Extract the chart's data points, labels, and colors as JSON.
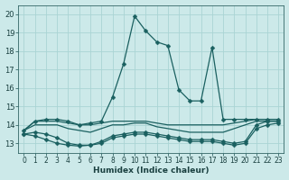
{
  "xlabel": "Humidex (Indice chaleur)",
  "ylabel": "",
  "xlim": [
    -0.5,
    23.5
  ],
  "ylim": [
    12.5,
    20.5
  ],
  "yticks": [
    13,
    14,
    15,
    16,
    17,
    18,
    19,
    20
  ],
  "xticks": [
    0,
    1,
    2,
    3,
    4,
    5,
    6,
    7,
    8,
    9,
    10,
    11,
    12,
    13,
    14,
    15,
    16,
    17,
    18,
    19,
    20,
    21,
    22,
    23
  ],
  "background_color": "#cce9e9",
  "grid_color": "#aad4d4",
  "line_color": "#1a6060",
  "lines": [
    {
      "x": [
        0,
        1,
        2,
        3,
        4,
        5,
        6,
        7,
        8,
        9,
        10,
        11,
        12,
        13,
        14,
        15,
        16,
        17,
        18,
        19,
        20,
        21,
        22,
        23
      ],
      "y": [
        13.7,
        14.2,
        14.3,
        14.3,
        14.2,
        14.0,
        14.1,
        14.2,
        15.5,
        17.3,
        19.9,
        19.1,
        18.5,
        18.3,
        15.9,
        15.3,
        15.3,
        18.2,
        14.3,
        14.3,
        14.3,
        14.3,
        14.3,
        14.3
      ],
      "markers": true
    },
    {
      "x": [
        0,
        1,
        2,
        3,
        4,
        5,
        6,
        7,
        8,
        9,
        10,
        11,
        12,
        13,
        14,
        15,
        16,
        17,
        18,
        19,
        20,
        21,
        22,
        23
      ],
      "y": [
        13.7,
        14.2,
        14.2,
        14.2,
        14.1,
        14.0,
        14.0,
        14.1,
        14.2,
        14.2,
        14.2,
        14.2,
        14.1,
        14.0,
        14.0,
        14.0,
        14.0,
        14.0,
        14.0,
        14.1,
        14.2,
        14.3,
        14.3,
        14.3
      ],
      "markers": false
    },
    {
      "x": [
        0,
        1,
        2,
        3,
        4,
        5,
        6,
        7,
        8,
        9,
        10,
        11,
        12,
        13,
        14,
        15,
        16,
        17,
        18,
        19,
        20,
        21,
        22,
        23
      ],
      "y": [
        13.7,
        14.0,
        14.0,
        14.0,
        13.8,
        13.7,
        13.6,
        13.8,
        14.0,
        14.0,
        14.1,
        14.1,
        13.9,
        13.8,
        13.7,
        13.6,
        13.6,
        13.6,
        13.6,
        13.8,
        14.0,
        14.2,
        14.2,
        14.2
      ],
      "markers": false
    },
    {
      "x": [
        0,
        1,
        2,
        3,
        4,
        5,
        6,
        7,
        8,
        9,
        10,
        11,
        12,
        13,
        14,
        15,
        16,
        17,
        18,
        19,
        20,
        21,
        22,
        23
      ],
      "y": [
        13.5,
        13.6,
        13.5,
        13.3,
        13.0,
        12.9,
        12.9,
        13.1,
        13.4,
        13.5,
        13.6,
        13.6,
        13.5,
        13.4,
        13.3,
        13.2,
        13.2,
        13.2,
        13.1,
        13.0,
        13.1,
        14.0,
        14.2,
        14.2
      ],
      "markers": true
    },
    {
      "x": [
        0,
        1,
        2,
        3,
        4,
        5,
        6,
        7,
        8,
        9,
        10,
        11,
        12,
        13,
        14,
        15,
        16,
        17,
        18,
        19,
        20,
        21,
        22,
        23
      ],
      "y": [
        13.5,
        13.4,
        13.2,
        13.0,
        12.9,
        12.85,
        12.9,
        13.0,
        13.3,
        13.4,
        13.5,
        13.5,
        13.4,
        13.3,
        13.2,
        13.1,
        13.1,
        13.1,
        13.0,
        12.9,
        13.0,
        13.8,
        14.0,
        14.1
      ],
      "markers": true
    }
  ]
}
